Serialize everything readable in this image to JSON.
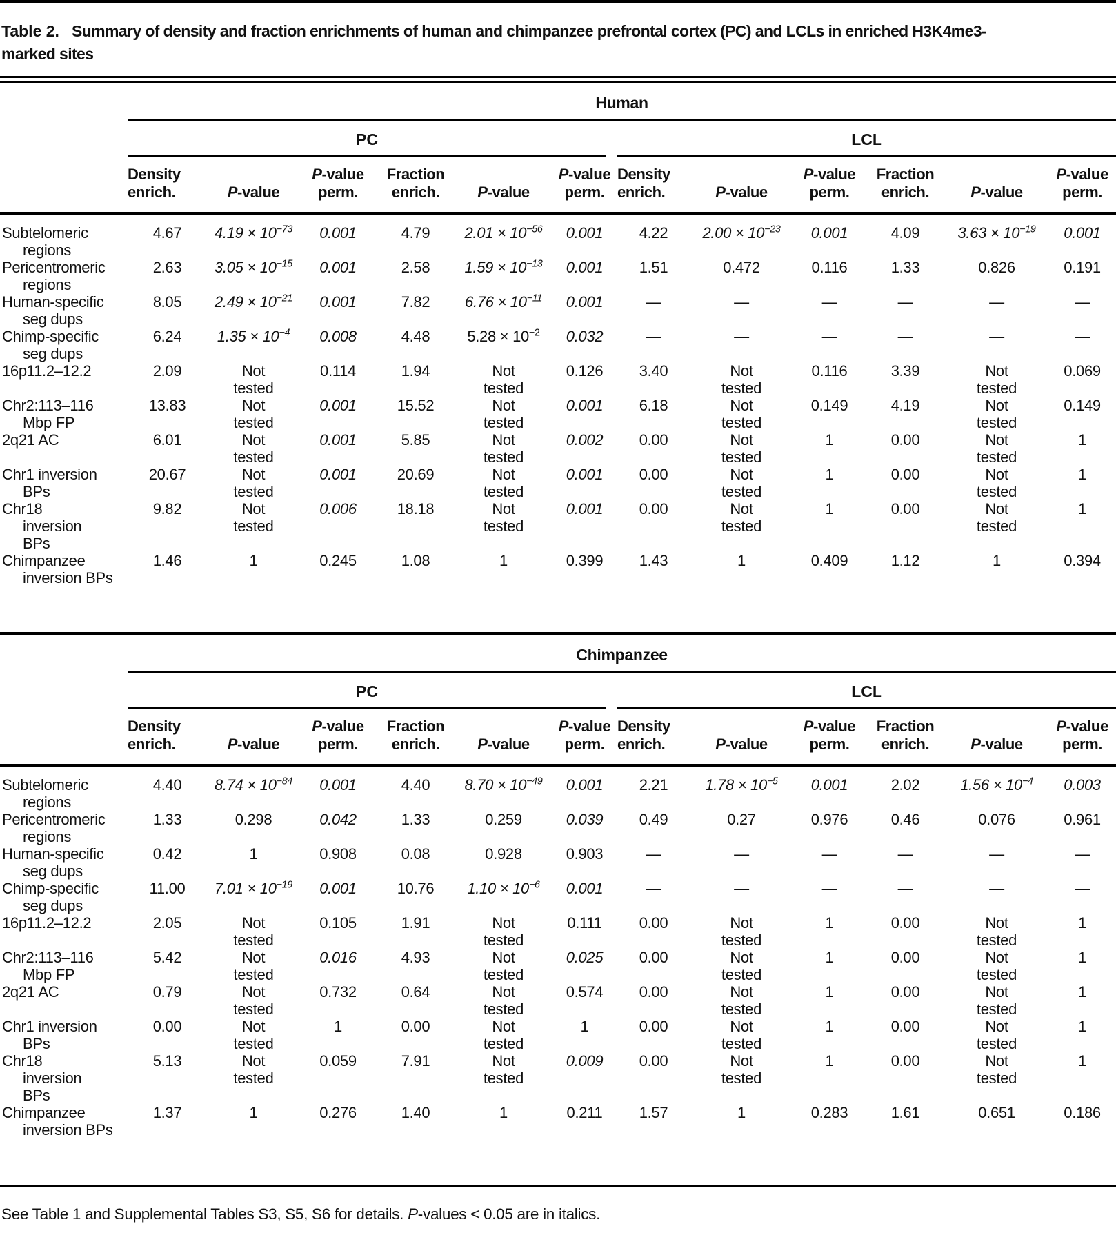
{
  "title": {
    "label": "Table 2.",
    "text": "Summary of density and fraction enrichments of human and chimpanzee prefrontal cortex (PC) and LCLs in enriched H3K4me3-\nmarked sites"
  },
  "table": {
    "group_labels": [
      "PC",
      "LCL"
    ],
    "column_headers": [
      "Density\nenrich.",
      "P-value",
      "P-value\nperm.",
      "Fraction\nenrich.",
      "P-value",
      "P-value\nperm."
    ],
    "sections": [
      {
        "species": "Human",
        "rows": [
          {
            "label": "Subtelomeric\nregions",
            "cells": [
              {
                "v": "4.67"
              },
              {
                "v": "4.19 × 10",
                "e": "−73",
                "it": true
              },
              {
                "v": "0.001",
                "it": true
              },
              {
                "v": "4.79"
              },
              {
                "v": "2.01 × 10",
                "e": "−56",
                "it": true
              },
              {
                "v": "0.001",
                "it": true
              },
              {
                "v": "4.22"
              },
              {
                "v": "2.00 × 10",
                "e": "−23",
                "it": true
              },
              {
                "v": "0.001",
                "it": true
              },
              {
                "v": "4.09"
              },
              {
                "v": "3.63 × 10",
                "e": "−19",
                "it": true
              },
              {
                "v": "0.001",
                "it": true
              }
            ]
          },
          {
            "label": "Pericentromeric\nregions",
            "cells": [
              {
                "v": "2.63"
              },
              {
                "v": "3.05 × 10",
                "e": "−15",
                "it": true
              },
              {
                "v": "0.001",
                "it": true
              },
              {
                "v": "2.58"
              },
              {
                "v": "1.59 × 10",
                "e": "−13",
                "it": true
              },
              {
                "v": "0.001",
                "it": true
              },
              {
                "v": "1.51"
              },
              {
                "v": "0.472"
              },
              {
                "v": "0.116"
              },
              {
                "v": "1.33"
              },
              {
                "v": "0.826"
              },
              {
                "v": "0.191"
              }
            ]
          },
          {
            "label": "Human-specific\nseg dups",
            "cells": [
              {
                "v": "8.05"
              },
              {
                "v": "2.49 × 10",
                "e": "−21",
                "it": true
              },
              {
                "v": "0.001",
                "it": true
              },
              {
                "v": "7.82"
              },
              {
                "v": "6.76 × 10",
                "e": "−11",
                "it": true
              },
              {
                "v": "0.001",
                "it": true
              },
              {
                "v": "—"
              },
              {
                "v": "—"
              },
              {
                "v": "—"
              },
              {
                "v": "—"
              },
              {
                "v": "—"
              },
              {
                "v": "—"
              }
            ]
          },
          {
            "label": "Chimp-specific\nseg dups",
            "cells": [
              {
                "v": "6.24"
              },
              {
                "v": "1.35 × 10",
                "e": "−4",
                "it": true
              },
              {
                "v": "0.008",
                "it": true
              },
              {
                "v": "4.48"
              },
              {
                "v": "5.28 × 10",
                "e": "−2"
              },
              {
                "v": "0.032",
                "it": true
              },
              {
                "v": "—"
              },
              {
                "v": "—"
              },
              {
                "v": "—"
              },
              {
                "v": "—"
              },
              {
                "v": "—"
              },
              {
                "v": "—"
              }
            ]
          },
          {
            "label": "16p11.2–12.2",
            "cells": [
              {
                "v": "2.09"
              },
              {
                "v": "Not\ntested"
              },
              {
                "v": "0.114"
              },
              {
                "v": "1.94"
              },
              {
                "v": "Not\ntested"
              },
              {
                "v": "0.126"
              },
              {
                "v": "3.40"
              },
              {
                "v": "Not\ntested"
              },
              {
                "v": "0.116"
              },
              {
                "v": "3.39"
              },
              {
                "v": "Not\ntested"
              },
              {
                "v": "0.069"
              }
            ]
          },
          {
            "label": "Chr2:113–116\nMbp FP",
            "cells": [
              {
                "v": "13.83"
              },
              {
                "v": "Not\ntested"
              },
              {
                "v": "0.001",
                "it": true
              },
              {
                "v": "15.52"
              },
              {
                "v": "Not\ntested"
              },
              {
                "v": "0.001",
                "it": true
              },
              {
                "v": "6.18"
              },
              {
                "v": "Not\ntested"
              },
              {
                "v": "0.149"
              },
              {
                "v": "4.19"
              },
              {
                "v": "Not\ntested"
              },
              {
                "v": "0.149"
              }
            ]
          },
          {
            "label": "2q21 AC",
            "cells": [
              {
                "v": "6.01"
              },
              {
                "v": "Not\ntested"
              },
              {
                "v": "0.001",
                "it": true
              },
              {
                "v": "5.85"
              },
              {
                "v": "Not\ntested"
              },
              {
                "v": "0.002",
                "it": true
              },
              {
                "v": "0.00"
              },
              {
                "v": "Not\ntested"
              },
              {
                "v": "1"
              },
              {
                "v": "0.00"
              },
              {
                "v": "Not\ntested"
              },
              {
                "v": "1"
              }
            ]
          },
          {
            "label": "Chr1 inversion\nBPs",
            "cells": [
              {
                "v": "20.67"
              },
              {
                "v": "Not\ntested"
              },
              {
                "v": "0.001",
                "it": true
              },
              {
                "v": "20.69"
              },
              {
                "v": "Not\ntested"
              },
              {
                "v": "0.001",
                "it": true
              },
              {
                "v": "0.00"
              },
              {
                "v": "Not\ntested"
              },
              {
                "v": "1"
              },
              {
                "v": "0.00"
              },
              {
                "v": "Not\ntested"
              },
              {
                "v": "1"
              }
            ]
          },
          {
            "label": "Chr18\ninversion\nBPs",
            "cells": [
              {
                "v": "9.82"
              },
              {
                "v": "Not\ntested"
              },
              {
                "v": "0.006",
                "it": true
              },
              {
                "v": "18.18"
              },
              {
                "v": "Not\ntested"
              },
              {
                "v": "0.001",
                "it": true
              },
              {
                "v": "0.00"
              },
              {
                "v": "Not\ntested"
              },
              {
                "v": "1"
              },
              {
                "v": "0.00"
              },
              {
                "v": "Not\ntested"
              },
              {
                "v": "1"
              }
            ]
          },
          {
            "label": "Chimpanzee\ninversion BPs",
            "cells": [
              {
                "v": "1.46"
              },
              {
                "v": "1"
              },
              {
                "v": "0.245"
              },
              {
                "v": "1.08"
              },
              {
                "v": "1"
              },
              {
                "v": "0.399"
              },
              {
                "v": "1.43"
              },
              {
                "v": "1"
              },
              {
                "v": "0.409"
              },
              {
                "v": "1.12"
              },
              {
                "v": "1"
              },
              {
                "v": "0.394"
              }
            ]
          }
        ]
      },
      {
        "species": "Chimpanzee",
        "rows": [
          {
            "label": "Subtelomeric\nregions",
            "cells": [
              {
                "v": "4.40"
              },
              {
                "v": "8.74 × 10",
                "e": "−84",
                "it": true
              },
              {
                "v": "0.001",
                "it": true
              },
              {
                "v": "4.40"
              },
              {
                "v": "8.70 × 10",
                "e": "−49",
                "it": true
              },
              {
                "v": "0.001",
                "it": true
              },
              {
                "v": "2.21"
              },
              {
                "v": "1.78 × 10",
                "e": "−5",
                "it": true
              },
              {
                "v": "0.001",
                "it": true
              },
              {
                "v": "2.02"
              },
              {
                "v": "1.56 × 10",
                "e": "−4",
                "it": true
              },
              {
                "v": "0.003",
                "it": true
              }
            ]
          },
          {
            "label": "Pericentromeric\nregions",
            "cells": [
              {
                "v": "1.33"
              },
              {
                "v": "0.298"
              },
              {
                "v": "0.042",
                "it": true
              },
              {
                "v": "1.33"
              },
              {
                "v": "0.259"
              },
              {
                "v": "0.039",
                "it": true
              },
              {
                "v": "0.49"
              },
              {
                "v": "0.27"
              },
              {
                "v": "0.976"
              },
              {
                "v": "0.46"
              },
              {
                "v": "0.076"
              },
              {
                "v": "0.961"
              }
            ]
          },
          {
            "label": "Human-specific\nseg dups",
            "cells": [
              {
                "v": "0.42"
              },
              {
                "v": "1"
              },
              {
                "v": "0.908"
              },
              {
                "v": "0.08"
              },
              {
                "v": "0.928"
              },
              {
                "v": "0.903"
              },
              {
                "v": "—"
              },
              {
                "v": "—"
              },
              {
                "v": "—"
              },
              {
                "v": "—"
              },
              {
                "v": "—"
              },
              {
                "v": "—"
              }
            ]
          },
          {
            "label": "Chimp-specific\nseg dups",
            "cells": [
              {
                "v": "11.00"
              },
              {
                "v": "7.01 × 10",
                "e": "−19",
                "it": true
              },
              {
                "v": "0.001",
                "it": true
              },
              {
                "v": "10.76"
              },
              {
                "v": "1.10 × 10",
                "e": "−6",
                "it": true
              },
              {
                "v": "0.001",
                "it": true
              },
              {
                "v": "—"
              },
              {
                "v": "—"
              },
              {
                "v": "—"
              },
              {
                "v": "—"
              },
              {
                "v": "—"
              },
              {
                "v": "—"
              }
            ]
          },
          {
            "label": "16p11.2–12.2",
            "cells": [
              {
                "v": "2.05"
              },
              {
                "v": "Not\ntested"
              },
              {
                "v": "0.105"
              },
              {
                "v": "1.91"
              },
              {
                "v": "Not\ntested"
              },
              {
                "v": "0.111"
              },
              {
                "v": "0.00"
              },
              {
                "v": "Not\ntested"
              },
              {
                "v": "1"
              },
              {
                "v": "0.00"
              },
              {
                "v": "Not\ntested"
              },
              {
                "v": "1"
              }
            ]
          },
          {
            "label": "Chr2:113–116\nMbp FP",
            "cells": [
              {
                "v": "5.42"
              },
              {
                "v": "Not\ntested"
              },
              {
                "v": "0.016",
                "it": true
              },
              {
                "v": "4.93"
              },
              {
                "v": "Not\ntested"
              },
              {
                "v": "0.025",
                "it": true
              },
              {
                "v": "0.00"
              },
              {
                "v": "Not\ntested"
              },
              {
                "v": "1"
              },
              {
                "v": "0.00"
              },
              {
                "v": "Not\ntested"
              },
              {
                "v": "1"
              }
            ]
          },
          {
            "label": "2q21 AC",
            "cells": [
              {
                "v": "0.79"
              },
              {
                "v": "Not\ntested"
              },
              {
                "v": "0.732"
              },
              {
                "v": "0.64"
              },
              {
                "v": "Not\ntested"
              },
              {
                "v": "0.574"
              },
              {
                "v": "0.00"
              },
              {
                "v": "Not\ntested"
              },
              {
                "v": "1"
              },
              {
                "v": "0.00"
              },
              {
                "v": "Not\ntested"
              },
              {
                "v": "1"
              }
            ]
          },
          {
            "label": "Chr1 inversion\nBPs",
            "cells": [
              {
                "v": "0.00"
              },
              {
                "v": "Not\ntested"
              },
              {
                "v": "1"
              },
              {
                "v": "0.00"
              },
              {
                "v": "Not\ntested"
              },
              {
                "v": "1"
              },
              {
                "v": "0.00"
              },
              {
                "v": "Not\ntested"
              },
              {
                "v": "1"
              },
              {
                "v": "0.00"
              },
              {
                "v": "Not\ntested"
              },
              {
                "v": "1"
              }
            ]
          },
          {
            "label": "Chr18\ninversion\nBPs",
            "cells": [
              {
                "v": "5.13"
              },
              {
                "v": "Not\ntested"
              },
              {
                "v": "0.059"
              },
              {
                "v": "7.91"
              },
              {
                "v": "Not\ntested"
              },
              {
                "v": "0.009",
                "it": true
              },
              {
                "v": "0.00"
              },
              {
                "v": "Not\ntested"
              },
              {
                "v": "1"
              },
              {
                "v": "0.00"
              },
              {
                "v": "Not\ntested"
              },
              {
                "v": "1"
              }
            ]
          },
          {
            "label": "Chimpanzee\ninversion BPs",
            "cells": [
              {
                "v": "1.37"
              },
              {
                "v": "1"
              },
              {
                "v": "0.276"
              },
              {
                "v": "1.40"
              },
              {
                "v": "1"
              },
              {
                "v": "0.211"
              },
              {
                "v": "1.57"
              },
              {
                "v": "1"
              },
              {
                "v": "0.283"
              },
              {
                "v": "1.61"
              },
              {
                "v": "0.651"
              },
              {
                "v": "0.186"
              }
            ]
          }
        ]
      }
    ]
  },
  "footnote": "See Table 1 and Supplemental Tables S3, S5, S6 for details. P-values < 0.05 are in italics."
}
